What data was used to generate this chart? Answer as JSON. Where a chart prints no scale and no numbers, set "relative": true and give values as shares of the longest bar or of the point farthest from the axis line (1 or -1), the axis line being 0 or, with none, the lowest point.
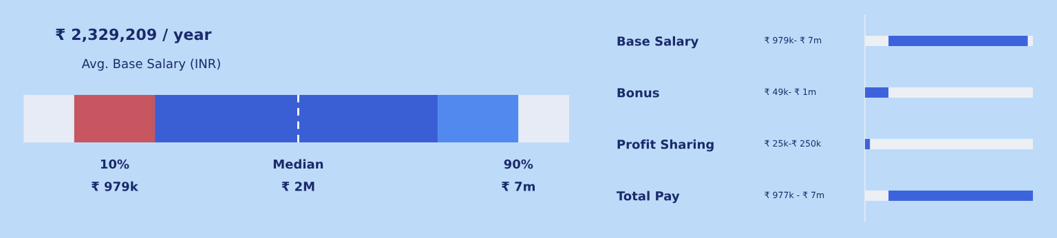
{
  "chart_data": [
    {
      "type": "bar",
      "orientation": "horizontal",
      "stacked": true,
      "relative": true,
      "title": "₹ 2,329,209 / year",
      "subtitle": "Avg. Base Salary (INR)",
      "categories": [
        null
      ],
      "series": [
        {
          "color": "#e6ebf5",
          "values": [
            0.092
          ]
        },
        {
          "color": "#c75660",
          "values": [
            0.148
          ]
        },
        {
          "color": "#3a5fd4",
          "values": [
            0.519
          ]
        },
        {
          "color": "#5289ee",
          "values": [
            0.148
          ]
        },
        {
          "color": "#e6ebf5",
          "values": [
            0.093
          ]
        }
      ],
      "ref_lines": [
        {
          "axis": "x",
          "value": 0.503,
          "color": "#ffffff",
          "line_style": "dashed"
        }
      ],
      "annotations": [
        "10%",
        "₹ 979k",
        "Median",
        "₹ 2M",
        "90%",
        "₹ 7m"
      ]
    },
    {
      "type": "bar",
      "orientation": "horizontal",
      "stacked": true,
      "relative": true,
      "categories": [
        "Base Salary",
        "Bonus",
        "Profit Sharing",
        "Total Pay"
      ],
      "series": [
        {
          "color": "#eceff4",
          "values": [
            0.14,
            0,
            0,
            0.14
          ]
        },
        {
          "color": "#3d63dc",
          "values": [
            0.83,
            0.14,
            0.03,
            0.86
          ]
        },
        {
          "color": "#eceff4",
          "values": [
            0.03,
            0.86,
            0.97,
            0
          ]
        }
      ],
      "annotations": [
        "₹ 979k- ₹ 7m",
        "₹ 49k- ₹ 1m",
        "₹ 25k-₹ 250k",
        "₹ 977k - ₹ 7m"
      ]
    }
  ]
}
